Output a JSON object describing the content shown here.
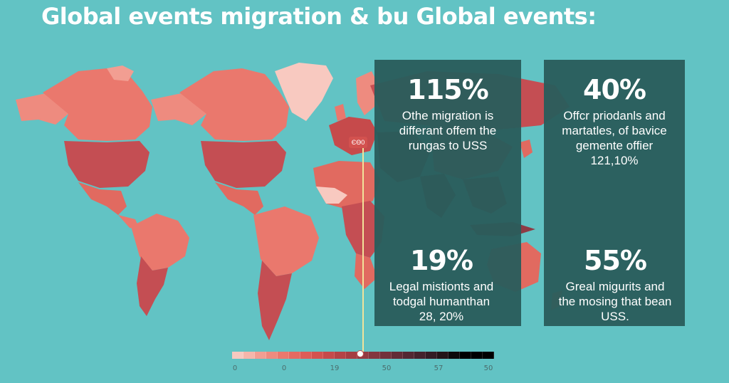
{
  "title": "Global events migration & bu Global events:",
  "colors": {
    "background": "#62c3c4",
    "panel": "#2a5d5c",
    "land_light": "#f0a096",
    "land_mid": "#e16a60",
    "land_dark": "#c44e53",
    "land_darker": "#8e3b44",
    "land_darkest": "#4a2a33",
    "marker_line": "#f2e39a"
  },
  "stats": [
    {
      "value": "115%",
      "lines": [
        "Othe migration is",
        "differant offem the",
        "rungas to USS"
      ]
    },
    {
      "value": "40%",
      "lines": [
        "Offcr priodanls and",
        "martatles, of bavice",
        "gemente offier",
        "121,10%"
      ]
    },
    {
      "value": "19%",
      "lines": [
        "Legal mistionts and",
        "todgal humanthan",
        "28, 20%"
      ]
    },
    {
      "value": "55%",
      "lines": [
        "Greal migurits and",
        "the mosing that bean",
        "USS."
      ]
    }
  ],
  "map_label": "ЄӨ0",
  "legend": {
    "swatches": [
      "#f8c9c0",
      "#f6b6ab",
      "#f29e92",
      "#ee8b7f",
      "#ea786d",
      "#e46a62",
      "#dd5d58",
      "#d3524f",
      "#c64a4b",
      "#b54346",
      "#a53e43",
      "#943a41",
      "#83363f",
      "#72313b",
      "#622c37",
      "#532833",
      "#44232d",
      "#341d25",
      "#241519",
      "#0d0b0c",
      "#000000",
      "#000000",
      "#000000"
    ],
    "ticks": [
      "0",
      "0",
      "19",
      "50",
      "57",
      "50"
    ],
    "marker": 0.49
  }
}
